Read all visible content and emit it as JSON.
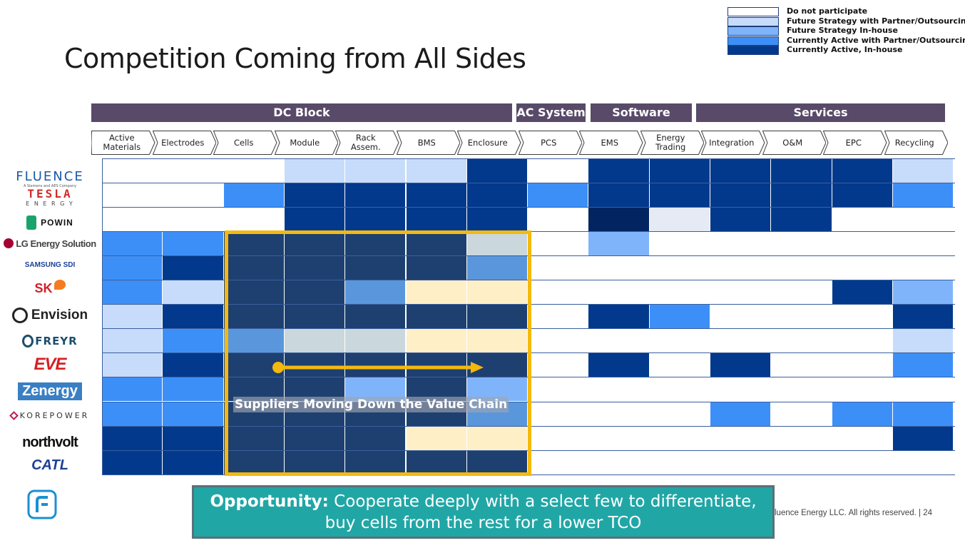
{
  "title": "Competition Coming from All Sides",
  "legend": [
    {
      "label": "Do not participate",
      "color": "#ffffff"
    },
    {
      "label": "Future Strategy with Partner/Outsourcing",
      "color": "#c7dcfb"
    },
    {
      "label": "Future Strategy In-house",
      "color": "#7fb4fb"
    },
    {
      "label": "Currently Active with Partner/Outsourcing",
      "color": "#3d8ff8"
    },
    {
      "label": "Currently Active, In-house",
      "color": "#02398c"
    }
  ],
  "groups": [
    {
      "label": "DC Block"
    },
    {
      "label": "AC System"
    },
    {
      "label": "Software"
    },
    {
      "label": "Services"
    }
  ],
  "columns": [
    "Active\nMaterials",
    "Electrodes",
    "Cells",
    "Module",
    "Rack\nAssem.",
    "BMS",
    "Enclosure",
    "PCS",
    "EMS",
    "Energy\nTrading",
    "Integration",
    "O&M",
    "EPC",
    "Recycling"
  ],
  "companies": [
    {
      "name": "FLUENCE",
      "sub": "A Siemens and AES Company"
    },
    {
      "name": "TESLA",
      "sub": "E N E R G Y"
    },
    {
      "name": "POWIN"
    },
    {
      "name": "LG Energy Solution"
    },
    {
      "name": "SAMSUNG SDI"
    },
    {
      "name": "SK"
    },
    {
      "name": "Envision"
    },
    {
      "name": "FREYR"
    },
    {
      "name": "EVE"
    },
    {
      "name": "Zenergy"
    },
    {
      "name": "KOREPOWER"
    },
    {
      "name": "northvolt"
    },
    {
      "name": "CATL"
    }
  ],
  "palette": {
    "0": "#ffffff",
    "1": "#c7dcfb",
    "2": "#7fb4fb",
    "3": "#3d8ff8",
    "4": "#02398c",
    "d": "#022461",
    "g": "#e6eaf5",
    "c": "#feefc7",
    "s": "#cad7dd",
    "m": "#5a96db"
  },
  "matrix": [
    [
      "0",
      "0",
      "0",
      "1",
      "1",
      "1",
      "4",
      "0",
      "4",
      "4",
      "4",
      "4",
      "4",
      "1"
    ],
    [
      "0",
      "0",
      "3",
      "4",
      "4",
      "4",
      "4",
      "3",
      "4",
      "4",
      "4",
      "4",
      "4",
      "3"
    ],
    [
      "0",
      "0",
      "0",
      "4",
      "4",
      "4",
      "4",
      "0",
      "d",
      "g",
      "4",
      "4",
      "0",
      "0"
    ],
    [
      "3",
      "3",
      "4",
      "4",
      "4",
      "4",
      "s",
      "0",
      "2",
      "0",
      "0",
      "0",
      "0",
      "0"
    ],
    [
      "3",
      "4",
      "4",
      "4",
      "4",
      "4",
      "m",
      "0",
      "0",
      "0",
      "0",
      "0",
      "0",
      "0"
    ],
    [
      "3",
      "1",
      "4",
      "4",
      "m",
      "c",
      "c",
      "0",
      "0",
      "0",
      "0",
      "0",
      "4",
      "2"
    ],
    [
      "1",
      "4",
      "4",
      "4",
      "4",
      "4",
      "4",
      "0",
      "4",
      "3",
      "0",
      "0",
      "0",
      "4"
    ],
    [
      "1",
      "3",
      "m",
      "s",
      "s",
      "c",
      "c",
      "0",
      "0",
      "0",
      "0",
      "0",
      "0",
      "1"
    ],
    [
      "1",
      "4",
      "4",
      "4",
      "4",
      "4",
      "4",
      "0",
      "4",
      "0",
      "4",
      "0",
      "0",
      "3"
    ],
    [
      "3",
      "3",
      "4",
      "4",
      "2",
      "4",
      "2",
      "0",
      "0",
      "0",
      "0",
      "0",
      "0",
      "0"
    ],
    [
      "3",
      "3",
      "4",
      "4",
      "4",
      "4",
      "m",
      "0",
      "0",
      "0",
      "3",
      "0",
      "3",
      "3"
    ],
    [
      "4",
      "4",
      "4",
      "4",
      "4",
      "c",
      "c",
      "0",
      "0",
      "0",
      "0",
      "0",
      "0",
      "4"
    ],
    [
      "4",
      "4",
      "4",
      "4",
      "4",
      "4",
      "4",
      "0",
      "0",
      "0",
      "0",
      "0",
      "0",
      "0"
    ]
  ],
  "overlay": {
    "suppliers_label": "Suppliers Moving Down the Value Chain"
  },
  "opportunity": {
    "bold": "Opportunity:",
    "line1": " Cooperate deeply with a select few to differentiate,",
    "line2": "buy cells from the rest for a lower TCO"
  },
  "footer": {
    "text": "luence Energy LLC. All rights reserved. |",
    "page": "24"
  },
  "colors": {
    "group_bar": "#584a68",
    "highlight": "#f5b90d",
    "opportunity_bg": "#21a6a6",
    "dc_overlay": "#1d4070"
  }
}
